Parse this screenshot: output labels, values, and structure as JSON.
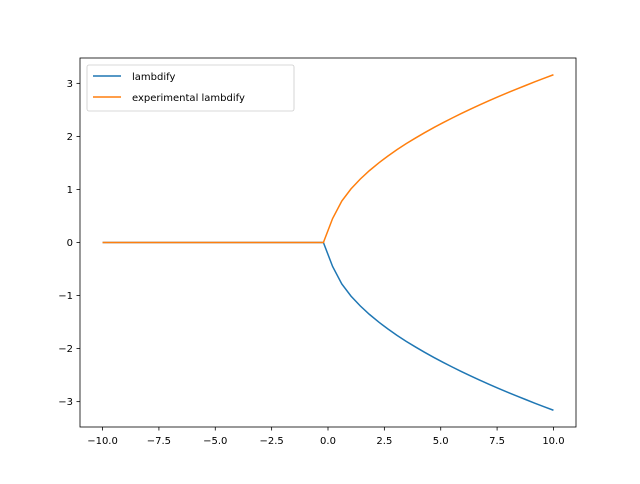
{
  "chart_data": {
    "type": "line",
    "title": "",
    "xlabel": "",
    "ylabel": "",
    "xlim": [
      -11,
      11
    ],
    "ylim": [
      -3.478,
      3.478
    ],
    "grid": false,
    "legend_placement": "upper-left",
    "xticks": [
      -10.0,
      -7.5,
      -5.0,
      -2.5,
      0.0,
      2.5,
      5.0,
      7.5,
      10.0
    ],
    "xtick_labels": [
      "−10.0",
      "−7.5",
      "−5.0",
      "−2.5",
      "0.0",
      "2.5",
      "5.0",
      "7.5",
      "10.0"
    ],
    "yticks": [
      -3,
      -2,
      -1,
      0,
      1,
      2,
      3
    ],
    "ytick_labels": [
      "−3",
      "−2",
      "−1",
      "0",
      "1",
      "2",
      "3"
    ],
    "x": [
      -10,
      -9.592,
      -9.184,
      -8.776,
      -8.367,
      -7.959,
      -7.551,
      -7.143,
      -6.735,
      -6.327,
      -5.918,
      -5.51,
      -5.102,
      -4.694,
      -4.286,
      -3.878,
      -3.469,
      -3.061,
      -2.653,
      -2.245,
      -1.837,
      -1.429,
      -1.02,
      -0.612,
      -0.204,
      0.204,
      0.612,
      1.02,
      1.429,
      1.837,
      2.245,
      2.653,
      3.061,
      3.469,
      3.878,
      4.286,
      4.694,
      5.102,
      5.51,
      5.918,
      6.327,
      6.735,
      7.143,
      7.551,
      7.959,
      8.367,
      8.776,
      9.184,
      9.592,
      10
    ],
    "series": [
      {
        "name": "lambdify",
        "color": "#1f77b4",
        "values": [
          0,
          0,
          0,
          0,
          0,
          0,
          0,
          0,
          0,
          0,
          0,
          0,
          0,
          0,
          0,
          0,
          0,
          0,
          0,
          0,
          0,
          0,
          0,
          0,
          0,
          -0.452,
          -0.782,
          -1.01,
          -1.195,
          -1.355,
          -1.498,
          -1.629,
          -1.75,
          -1.863,
          -1.969,
          -2.07,
          -2.167,
          -2.259,
          -2.347,
          -2.433,
          -2.515,
          -2.595,
          -2.673,
          -2.748,
          -2.821,
          -2.893,
          -2.962,
          -3.031,
          -3.097,
          -3.162
        ]
      },
      {
        "name": "experimental lambdify",
        "color": "#ff7f0e",
        "values": [
          0,
          0,
          0,
          0,
          0,
          0,
          0,
          0,
          0,
          0,
          0,
          0,
          0,
          0,
          0,
          0,
          0,
          0,
          0,
          0,
          0,
          0,
          0,
          0,
          0,
          0.452,
          0.782,
          1.01,
          1.195,
          1.355,
          1.498,
          1.629,
          1.75,
          1.863,
          1.969,
          2.07,
          2.167,
          2.259,
          2.347,
          2.433,
          2.515,
          2.595,
          2.673,
          2.748,
          2.821,
          2.893,
          2.962,
          3.031,
          3.097,
          3.162
        ]
      }
    ]
  }
}
